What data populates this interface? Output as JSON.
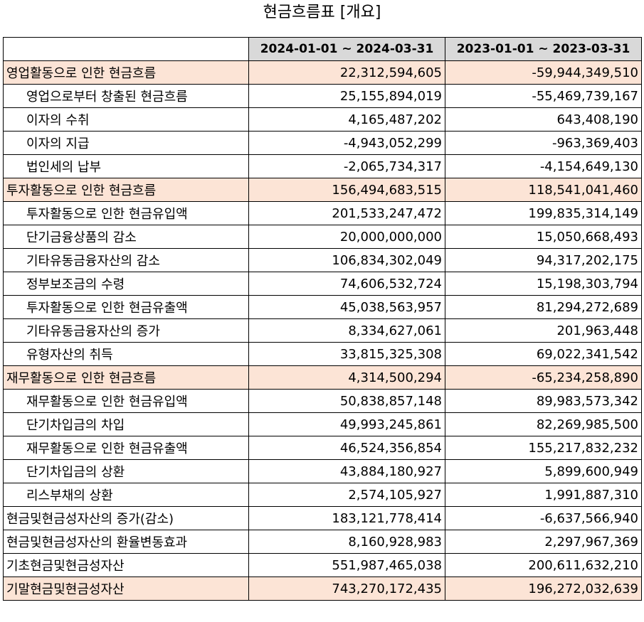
{
  "title": "현금흐름표 [개요]",
  "columns": [
    "",
    "2024-01-01 ~ 2024-03-31",
    "2023-01-01 ~ 2023-03-31"
  ],
  "rows": [
    {
      "label": "영업활동으로 인한 현금흐름",
      "v1": "22,312,594,605",
      "v2": "-59,944,349,510",
      "indent": false,
      "highlight": true
    },
    {
      "label": "영업으로부터 창출된 현금흐름",
      "v1": "25,155,894,019",
      "v2": "-55,469,739,167",
      "indent": true,
      "highlight": false
    },
    {
      "label": "이자의 수취",
      "v1": "4,165,487,202",
      "v2": "643,408,190",
      "indent": true,
      "highlight": false
    },
    {
      "label": "이자의 지급",
      "v1": "-4,943,052,299",
      "v2": "-963,369,403",
      "indent": true,
      "highlight": false
    },
    {
      "label": "법인세의 납부",
      "v1": "-2,065,734,317",
      "v2": "-4,154,649,130",
      "indent": true,
      "highlight": false
    },
    {
      "label": "투자활동으로 인한 현금흐름",
      "v1": "156,494,683,515",
      "v2": "118,541,041,460",
      "indent": false,
      "highlight": true
    },
    {
      "label": "투자활동으로 인한 현금유입액",
      "v1": "201,533,247,472",
      "v2": "199,835,314,149",
      "indent": true,
      "highlight": false
    },
    {
      "label": "단기금융상품의 감소",
      "v1": "20,000,000,000",
      "v2": "15,050,668,493",
      "indent": true,
      "highlight": false
    },
    {
      "label": "기타유동금융자산의 감소",
      "v1": "106,834,302,049",
      "v2": "94,317,202,175",
      "indent": true,
      "highlight": false
    },
    {
      "label": "정부보조금의 수령",
      "v1": "74,606,532,724",
      "v2": "15,198,303,794",
      "indent": true,
      "highlight": false
    },
    {
      "label": "투자활동으로 인한 현금유출액",
      "v1": "45,038,563,957",
      "v2": "81,294,272,689",
      "indent": true,
      "highlight": false
    },
    {
      "label": "기타유동금융자산의 증가",
      "v1": "8,334,627,061",
      "v2": "201,963,448",
      "indent": true,
      "highlight": false
    },
    {
      "label": "유형자산의 취득",
      "v1": "33,815,325,308",
      "v2": "69,022,341,542",
      "indent": true,
      "highlight": false
    },
    {
      "label": "재무활동으로 인한 현금흐름",
      "v1": "4,314,500,294",
      "v2": "-65,234,258,890",
      "indent": false,
      "highlight": true
    },
    {
      "label": "재무활동으로 인한 현금유입액",
      "v1": "50,838,857,148",
      "v2": "89,983,573,342",
      "indent": true,
      "highlight": false
    },
    {
      "label": "단기차입금의 차입",
      "v1": "49,993,245,861",
      "v2": "82,269,985,500",
      "indent": true,
      "highlight": false
    },
    {
      "label": "재무활동으로 인한 현금유출액",
      "v1": "46,524,356,854",
      "v2": "155,217,832,232",
      "indent": true,
      "highlight": false
    },
    {
      "label": "단기차입금의 상환",
      "v1": "43,884,180,927",
      "v2": "5,899,600,949",
      "indent": true,
      "highlight": false
    },
    {
      "label": "리스부채의 상환",
      "v1": "2,574,105,927",
      "v2": "1,991,887,310",
      "indent": true,
      "highlight": false
    },
    {
      "label": "현금및현금성자산의 증가(감소)",
      "v1": "183,121,778,414",
      "v2": "-6,637,566,940",
      "indent": false,
      "highlight": false
    },
    {
      "label": "현금및현금성자산의 환율변동효과",
      "v1": "8,160,928,983",
      "v2": "2,297,967,369",
      "indent": false,
      "highlight": false
    },
    {
      "label": "기초현금및현금성자산",
      "v1": "551,987,465,038",
      "v2": "200,611,632,210",
      "indent": false,
      "highlight": false
    },
    {
      "label": "기말현금및현금성자산",
      "v1": "743,270,172,435",
      "v2": "196,272,032,639",
      "indent": false,
      "highlight": true
    }
  ]
}
